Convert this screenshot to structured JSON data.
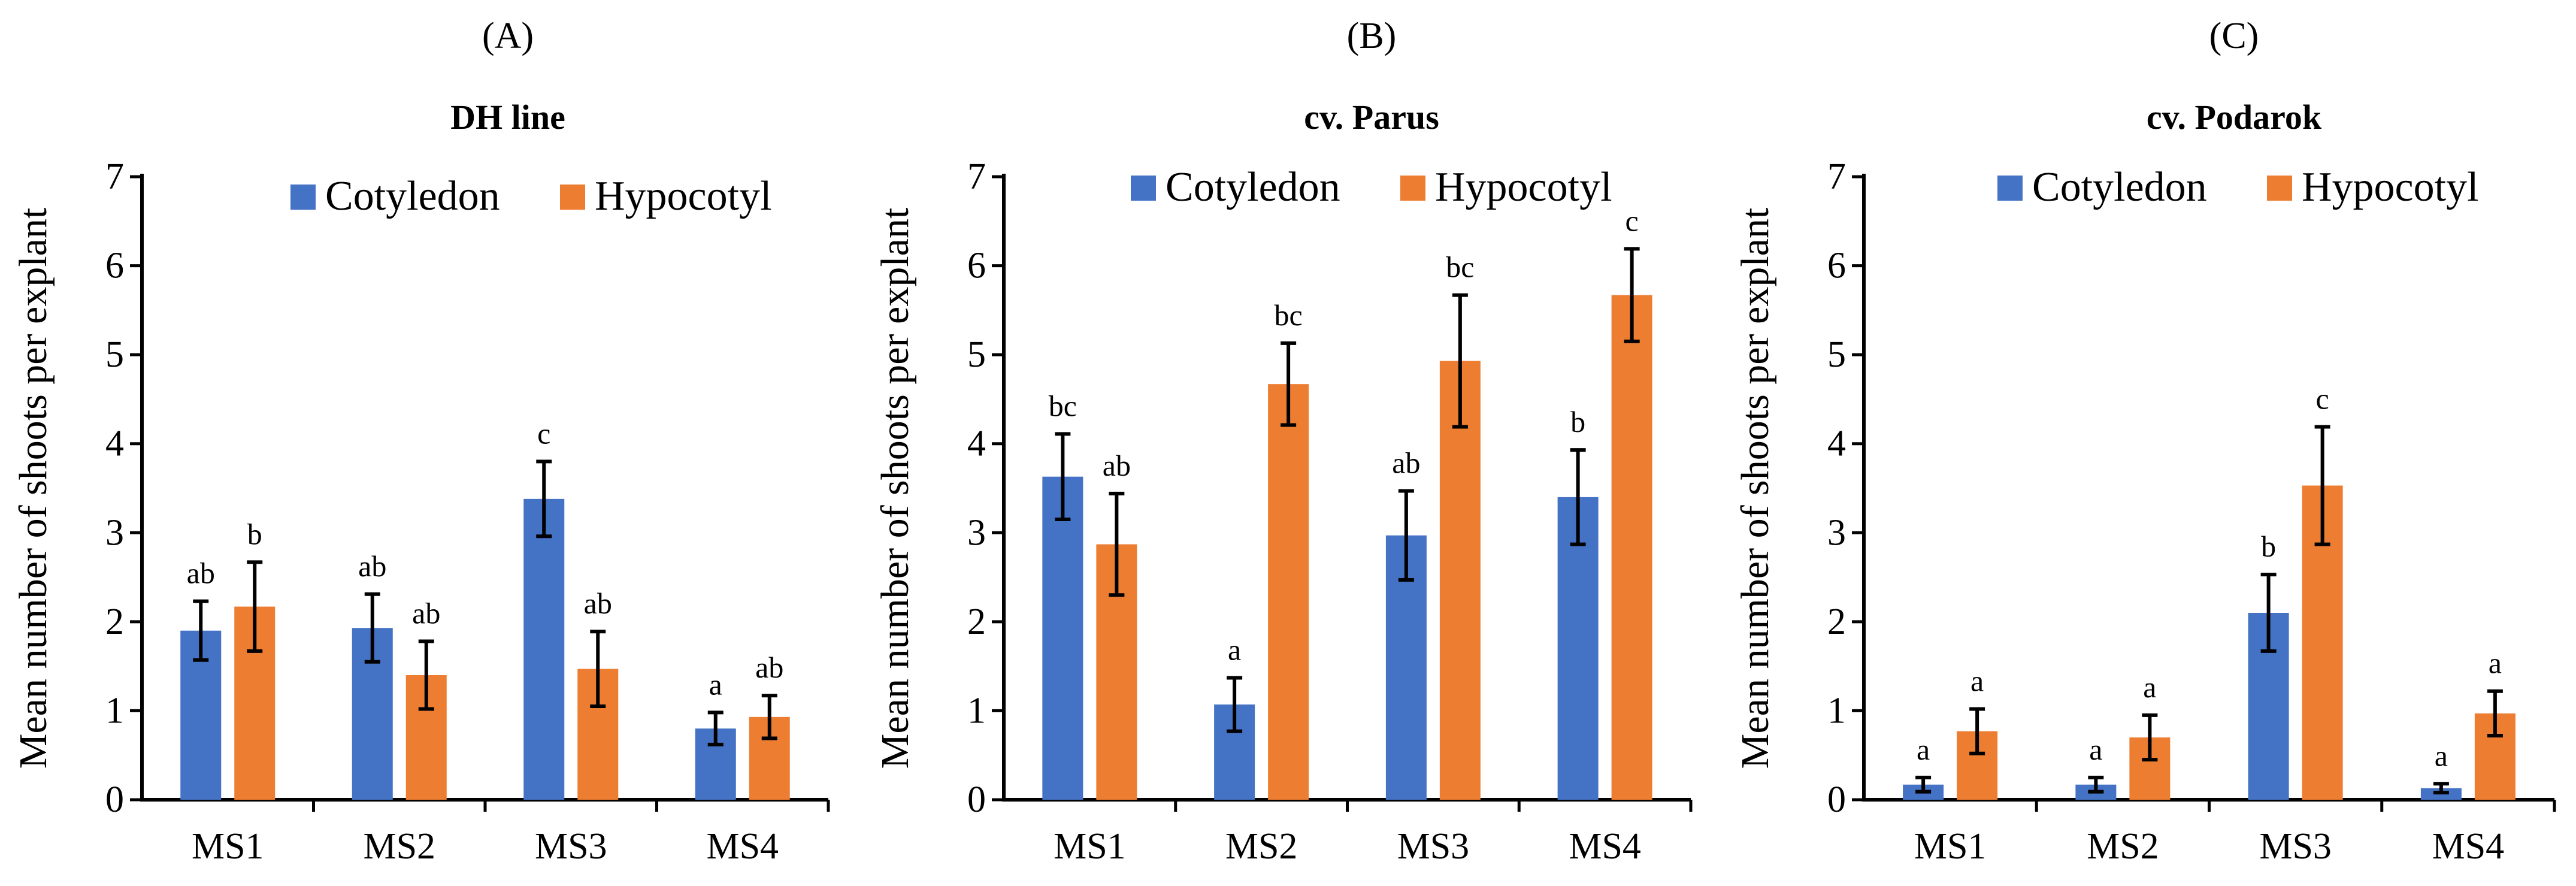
{
  "colors": {
    "cotyledon": "#4472C4",
    "hypocotyl": "#ED7D31",
    "axis": "#000000"
  },
  "chart_data": [
    {
      "type": "bar",
      "panel_label": "(A)",
      "title": "DH line",
      "ylabel": "Mean number of shoots per explant",
      "xlabel": "",
      "ylim": [
        0,
        7
      ],
      "yticks": [
        "0",
        "1",
        "2",
        "3",
        "4",
        "5",
        "6",
        "7"
      ],
      "grid": false,
      "legend_position": "top-right",
      "categories": [
        "MS1",
        "MS2",
        "MS3",
        "MS4"
      ],
      "series": [
        {
          "name": "Cotyledon",
          "color": "#4472C4",
          "values": [
            1.9,
            1.93,
            3.38,
            0.8
          ],
          "errors": [
            0.33,
            0.38,
            0.42,
            0.18
          ],
          "labels": [
            "ab",
            "ab",
            "c",
            "a"
          ]
        },
        {
          "name": "Hypocotyl",
          "color": "#ED7D31",
          "values": [
            2.17,
            1.4,
            1.47,
            0.93
          ],
          "errors": [
            0.5,
            0.38,
            0.42,
            0.24
          ],
          "labels": [
            "b",
            "ab",
            "ab",
            "ab"
          ]
        }
      ]
    },
    {
      "type": "bar",
      "panel_label": "(B)",
      "title": "cv. Parus",
      "ylabel": "Mean number of shoots per explant",
      "xlabel": "",
      "ylim": [
        0,
        7
      ],
      "yticks": [
        "0",
        "1",
        "2",
        "3",
        "4",
        "5",
        "6",
        "7"
      ],
      "grid": false,
      "legend_position": "top-center",
      "categories": [
        "MS1",
        "MS2",
        "MS3",
        "MS4"
      ],
      "series": [
        {
          "name": "Cotyledon",
          "color": "#4472C4",
          "values": [
            3.63,
            1.07,
            2.97,
            3.4
          ],
          "errors": [
            0.48,
            0.3,
            0.5,
            0.53
          ],
          "labels": [
            "bc",
            "a",
            "ab",
            "b"
          ]
        },
        {
          "name": "Hypocotyl",
          "color": "#ED7D31",
          "values": [
            2.87,
            4.67,
            4.93,
            5.67
          ],
          "errors": [
            0.57,
            0.46,
            0.74,
            0.52
          ],
          "labels": [
            "ab",
            "bc",
            "bc",
            "c"
          ]
        }
      ]
    },
    {
      "type": "bar",
      "panel_label": "(C)",
      "title": "cv. Podarok",
      "ylabel": "Mean number of shoots per explant",
      "xlabel": "",
      "ylim": [
        0,
        7
      ],
      "yticks": [
        "0",
        "1",
        "2",
        "3",
        "4",
        "5",
        "6",
        "7"
      ],
      "grid": false,
      "legend_position": "top-center",
      "categories": [
        "MS1",
        "MS2",
        "MS3",
        "MS4"
      ],
      "series": [
        {
          "name": "Cotyledon",
          "color": "#4472C4",
          "values": [
            0.17,
            0.17,
            2.1,
            0.13
          ],
          "errors": [
            0.08,
            0.08,
            0.43,
            0.05
          ],
          "labels": [
            "a",
            "a",
            "b",
            "a"
          ]
        },
        {
          "name": "Hypocotyl",
          "color": "#ED7D31",
          "values": [
            0.77,
            0.7,
            3.53,
            0.97
          ],
          "errors": [
            0.25,
            0.25,
            0.66,
            0.25
          ],
          "labels": [
            "a",
            "a",
            "c",
            "a"
          ]
        }
      ]
    }
  ]
}
